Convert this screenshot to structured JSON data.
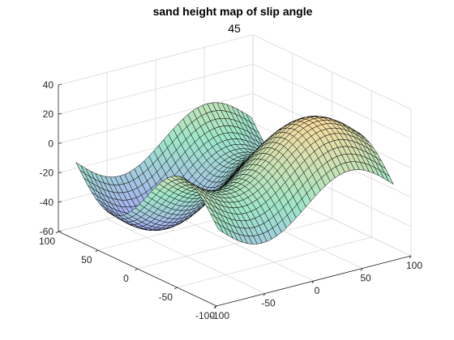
{
  "chart_data": {
    "type": "surface",
    "title": "sand height map of slip angle",
    "subtitle": "45",
    "xlabel": "",
    "ylabel": "",
    "zlabel": "",
    "xlim": [
      -100,
      100
    ],
    "ylim": [
      -100,
      100
    ],
    "zlim": [
      -60,
      40
    ],
    "x_ticks": [
      -100,
      -50,
      0,
      50,
      100
    ],
    "y_ticks": [
      -100,
      -50,
      0,
      50,
      100
    ],
    "z_ticks": [
      -60,
      -40,
      -20,
      0,
      20,
      40
    ],
    "x_tick_labels": [
      "-100",
      "-50",
      "0",
      "50",
      "100"
    ],
    "y_tick_labels": [
      "-100",
      "-50",
      "0",
      "50",
      "100"
    ],
    "z_tick_labels": [
      "-60",
      "-40",
      "-20",
      "0",
      "20",
      "40"
    ],
    "grid": true,
    "view": {
      "azimuth": -37.5,
      "elevation": 30
    },
    "mesh_range": [
      -90,
      90
    ],
    "mesh_count": 37,
    "surface_model": {
      "description": "z = A*sin(pi*x/L) - B*sin(pi*y/L) + C",
      "A": 17,
      "B": 24,
      "L": 90,
      "C": -12
    },
    "colors": {
      "high": "#f8dca0",
      "mid": "#9ee6c8",
      "low": "#a9a6f8",
      "edge": "#000000"
    }
  }
}
